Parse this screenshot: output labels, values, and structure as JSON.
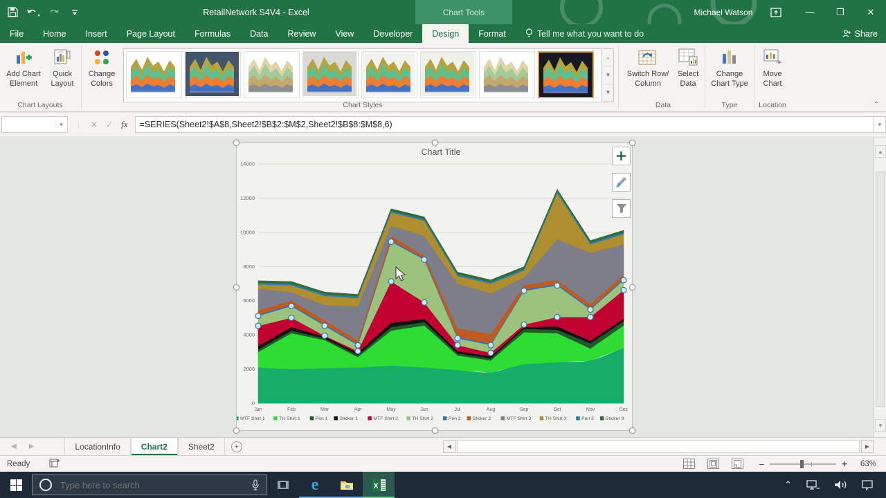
{
  "icons": {
    "dropdown": "▾",
    "chevron_up_small": "▲",
    "chevron_down_small": "▼",
    "left_arrow": "◀",
    "right_arrow": "▶",
    "plus": "+",
    "close": "✕",
    "check": "✓",
    "x_mark": "✕",
    "minus": "−",
    "collapse": "⌃",
    "ellipsis_sep": "⋮",
    "minimize": "—",
    "restore": "❐",
    "more_gallery": "▼",
    "tray_chevron": "⌃"
  },
  "titlebar": {
    "title": "RetailNetwork S4V4 - Excel",
    "context_label": "Chart Tools",
    "user": "Michael Watson"
  },
  "ribbon_tabs": {
    "items": [
      "File",
      "Home",
      "Insert",
      "Page Layout",
      "Formulas",
      "Data",
      "Review",
      "View",
      "Developer",
      "Design",
      "Format"
    ],
    "active": "Design",
    "tell_me": "Tell me what you want to do",
    "share": "Share"
  },
  "ribbon": {
    "add_chart_element": "Add Chart Element",
    "quick_layout": "Quick Layout",
    "chart_layouts_group": "Chart Layouts",
    "change_colors": "Change Colors",
    "chart_styles_group": "Chart Styles",
    "switch_row_column": "Switch Row/ Column",
    "select_data": "Select Data",
    "data_group": "Data",
    "change_chart_type": "Change Chart Type",
    "type_group": "Type",
    "move_chart": "Move Chart",
    "location_group": "Location",
    "styles": [
      {
        "bg": "#ffffff",
        "selected": false
      },
      {
        "bg": "#44546a",
        "selected": false
      },
      {
        "bg": "#ffffff",
        "hatch": true,
        "selected": false
      },
      {
        "bg": "#d9d9d6",
        "selected": false
      },
      {
        "bg": "#f2f2ef",
        "selected": false
      },
      {
        "bg": "#eef0ea",
        "selected": false
      },
      {
        "bg": "#ffffff",
        "hatch": true,
        "selected": false
      },
      {
        "bg": "#181822",
        "selected": true
      }
    ]
  },
  "formula_bar": {
    "name_box": "",
    "fx_label": "fx",
    "formula": "=SERIES(Sheet2!$A$8,Sheet2!$B$2:$M$2,Sheet2!$B$8:$M$8,6)"
  },
  "chart_data": {
    "type": "area",
    "stacked": true,
    "title": "Chart Title",
    "categories": [
      "Jan",
      "Feb",
      "Mar",
      "Apr",
      "May",
      "Jun",
      "Jul",
      "Aug",
      "Sep",
      "Oct",
      "Nov",
      "Dec"
    ],
    "ylim": [
      0,
      14000
    ],
    "ytick_step": 2000,
    "grid": true,
    "legend_position": "bottom",
    "selected_series_index": 5,
    "series": [
      {
        "name": "MTF Shirt 1",
        "color": "#17ad68",
        "smooth": true,
        "values": [
          2100,
          2000,
          2050,
          2100,
          2200,
          2100,
          1950,
          1800,
          2300,
          2400,
          2500,
          3250
        ]
      },
      {
        "name": "TH Shirt 1",
        "color": "#2edd33",
        "smooth": false,
        "values": [
          900,
          2100,
          1650,
          600,
          2050,
          2450,
          850,
          700,
          1850,
          1700,
          700,
          1300
        ]
      },
      {
        "name": "Pen 1",
        "color": "#1e5b28",
        "smooth": false,
        "values": [
          150,
          150,
          100,
          120,
          200,
          200,
          120,
          120,
          200,
          200,
          300,
          250
        ]
      },
      {
        "name": "Sticker 1",
        "color": "#121212",
        "smooth": false,
        "values": [
          200,
          200,
          100,
          130,
          250,
          200,
          130,
          130,
          100,
          200,
          150,
          150
        ]
      },
      {
        "name": "MTF Shirt 2",
        "color": "#c00330",
        "smooth": false,
        "values": [
          1180,
          550,
          50,
          100,
          2430,
          950,
          350,
          200,
          150,
          540,
          1390,
          1670
        ]
      },
      {
        "name": "TH Shirt 2",
        "color": "#9cc27e",
        "smooth": false,
        "values": [
          580,
          680,
          580,
          340,
          2320,
          2500,
          400,
          450,
          1980,
          1850,
          440,
          580
        ]
      },
      {
        "name": "Pen 2",
        "color": "#2e75b6",
        "smooth": false,
        "values": [
          80,
          80,
          80,
          80,
          80,
          80,
          80,
          80,
          80,
          80,
          80,
          80
        ]
      },
      {
        "name": "Sticker 2",
        "color": "#c05a21",
        "smooth": false,
        "values": [
          250,
          250,
          250,
          210,
          250,
          170,
          500,
          570,
          250,
          250,
          250,
          250
        ]
      },
      {
        "name": "MTF Shirt 3",
        "color": "#7d7e8a",
        "smooth": false,
        "values": [
          1260,
          490,
          885,
          2000,
          620,
          1140,
          2620,
          2380,
          450,
          2370,
          2990,
          1770
        ]
      },
      {
        "name": "TH Shirt 3",
        "color": "#ae8e2e",
        "smooth": false,
        "values": [
          250,
          400,
          540,
          470,
          760,
          890,
          450,
          570,
          410,
          2710,
          500,
          600
        ]
      },
      {
        "name": "Pen 3",
        "color": "#2e7d9e",
        "smooth": false,
        "values": [
          100,
          100,
          100,
          100,
          100,
          100,
          100,
          100,
          100,
          100,
          100,
          100
        ]
      },
      {
        "name": "Sticker 3",
        "color": "#2f6b3c",
        "smooth": false,
        "values": [
          120,
          120,
          120,
          120,
          120,
          120,
          120,
          120,
          120,
          120,
          120,
          120
        ]
      }
    ],
    "marker_fill": "#cde9f6",
    "marker_stroke": "#41719c"
  },
  "sheet_tabs": {
    "items": [
      {
        "label": "LocationInfo",
        "active": false
      },
      {
        "label": "Chart2",
        "active": true
      },
      {
        "label": "Sheet2",
        "active": false
      }
    ]
  },
  "status_bar": {
    "ready": "Ready",
    "zoom": "63%"
  },
  "taskbar": {
    "search_placeholder": "Type here to search"
  }
}
